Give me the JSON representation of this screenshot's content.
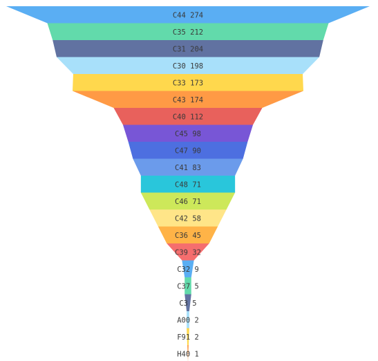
{
  "chart_data": {
    "type": "funnel",
    "title": "",
    "xlabel": "",
    "ylabel": "",
    "max_value": 274,
    "items": [
      {
        "name": "C44",
        "value": 274,
        "color": "#5AAEF3"
      },
      {
        "name": "C35",
        "value": 212,
        "color": "#62DAAB"
      },
      {
        "name": "C31",
        "value": 204,
        "color": "#6172A1"
      },
      {
        "name": "C30",
        "value": 198,
        "color": "#A8E0FA"
      },
      {
        "name": "C33",
        "value": 173,
        "color": "#FFD84D"
      },
      {
        "name": "C43",
        "value": 174,
        "color": "#FF9A45"
      },
      {
        "name": "C40",
        "value": 112,
        "color": "#E8615C"
      },
      {
        "name": "C45",
        "value": 98,
        "color": "#7856D6"
      },
      {
        "name": "C47",
        "value": 90,
        "color": "#4D6FE0"
      },
      {
        "name": "C41",
        "value": 83,
        "color": "#6B9BEB"
      },
      {
        "name": "C48",
        "value": 71,
        "color": "#29C6DB"
      },
      {
        "name": "C46",
        "value": 71,
        "color": "#CDE85A"
      },
      {
        "name": "C42",
        "value": 58,
        "color": "#FFE588"
      },
      {
        "name": "C36",
        "value": 45,
        "color": "#FFB347"
      },
      {
        "name": "C39",
        "value": 32,
        "color": "#F56E6E"
      },
      {
        "name": "C32",
        "value": 9,
        "color": "#5AAEF3"
      },
      {
        "name": "C37",
        "value": 5,
        "color": "#62DAAB"
      },
      {
        "name": "C3",
        "value": 5,
        "color": "#6172A1"
      },
      {
        "name": "A00",
        "value": 2,
        "color": "#A8E0FA"
      },
      {
        "name": "F91",
        "value": 2,
        "color": "#FFD84D"
      },
      {
        "name": "H40",
        "value": 1,
        "color": "#FF9A45"
      }
    ]
  }
}
